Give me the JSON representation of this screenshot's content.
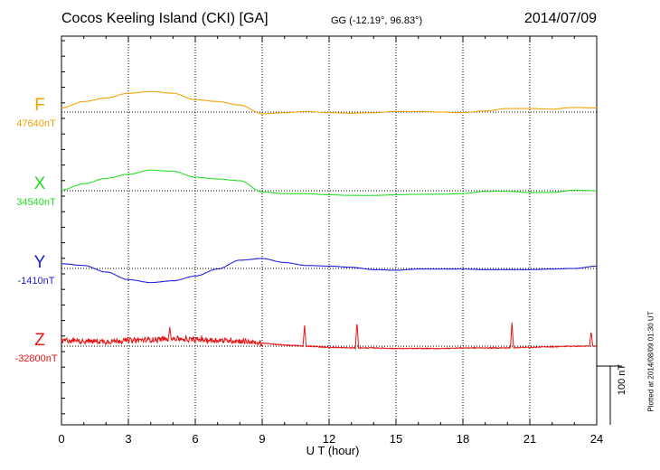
{
  "header": {
    "title": "Cocos Keeling Island (CKI)  [GA]",
    "coords": "GG (-12.19°,  96.83°)",
    "date": "2014/07/09"
  },
  "footer": {
    "plotted": "Plotted at 2014/08/09 01:30 UT"
  },
  "chart_data": {
    "type": "line",
    "title": "Cocos Keeling Island (CKI)  [GA]",
    "xlabel": "U T (hour)",
    "ylabel": "",
    "xlim": [
      0,
      24
    ],
    "x_ticks": [
      0,
      3,
      6,
      9,
      12,
      15,
      18,
      21,
      24
    ],
    "x_tick_labels": [
      "0",
      "3",
      "6",
      "9",
      "12",
      "15",
      "18",
      "21",
      "24"
    ],
    "scale_bar": {
      "value": 100,
      "label": "100 nT"
    },
    "grid": true,
    "series": [
      {
        "name": "F",
        "baseline_label": "47640nT",
        "baseline": 47640,
        "color": "#f0a000",
        "x": [
          0,
          1,
          2,
          3,
          4,
          5,
          6,
          7,
          8,
          9,
          10,
          11,
          12,
          13,
          14,
          15,
          16,
          17,
          18,
          19,
          20,
          21,
          22,
          23,
          24
        ],
        "values": [
          47647,
          47658,
          47664,
          47672,
          47675,
          47672,
          47661,
          47658,
          47652,
          47637,
          47639,
          47641,
          47639,
          47638,
          47639,
          47641,
          47641,
          47640,
          47639,
          47642,
          47646,
          47646,
          47645,
          47648,
          47647
        ]
      },
      {
        "name": "X",
        "baseline_label": "34540nT",
        "baseline": 34540,
        "color": "#22dd22",
        "x": [
          0,
          1,
          2,
          3,
          4,
          5,
          6,
          7,
          8,
          9,
          10,
          11,
          12,
          13,
          14,
          15,
          16,
          17,
          18,
          19,
          20,
          21,
          22,
          23,
          24
        ],
        "values": [
          34541,
          34552,
          34561,
          34568,
          34575,
          34573,
          34563,
          34560,
          34557,
          34538,
          34535,
          34535,
          34533,
          34532,
          34532,
          34533,
          34534,
          34534,
          34535,
          34539,
          34539,
          34537,
          34537,
          34541,
          34540
        ]
      },
      {
        "name": "Y",
        "baseline_label": "-1410nT",
        "baseline": -1410,
        "color": "#1a1adc",
        "x": [
          0,
          1,
          2,
          3,
          4,
          5,
          6,
          7,
          8,
          9,
          10,
          11,
          12,
          13,
          14,
          15,
          16,
          17,
          18,
          19,
          20,
          21,
          22,
          23,
          24
        ],
        "values": [
          -1402,
          -1405,
          -1416,
          -1429,
          -1434,
          -1431,
          -1423,
          -1411,
          -1396,
          -1393,
          -1400,
          -1405,
          -1406,
          -1408,
          -1412,
          -1413,
          -1411,
          -1411,
          -1411,
          -1412,
          -1412,
          -1412,
          -1411,
          -1410,
          -1406
        ]
      },
      {
        "name": "Z",
        "baseline_label": "-32800nT",
        "baseline": -32800,
        "color": "#e81414",
        "x": [
          0,
          1,
          2,
          3,
          4,
          5,
          6,
          7,
          8,
          9,
          10,
          11,
          12,
          13,
          14,
          15,
          16,
          17,
          18,
          19,
          20,
          21,
          22,
          23,
          24
        ],
        "values": [
          -32790,
          -32791,
          -32792,
          -32790,
          -32789,
          -32787,
          -32789,
          -32790,
          -32791,
          -32795,
          -32798,
          -32800,
          -32802,
          -32803,
          -32803,
          -32804,
          -32804,
          -32804,
          -32803,
          -32803,
          -32803,
          -32802,
          -32801,
          -32800,
          -32800
        ],
        "spikes": [
          {
            "x": 4.85,
            "value": -32766
          },
          {
            "x": 10.9,
            "value": -32765
          },
          {
            "x": 13.25,
            "value": -32757
          },
          {
            "x": 20.2,
            "value": -32759
          },
          {
            "x": 23.75,
            "value": -32774
          }
        ]
      }
    ]
  }
}
